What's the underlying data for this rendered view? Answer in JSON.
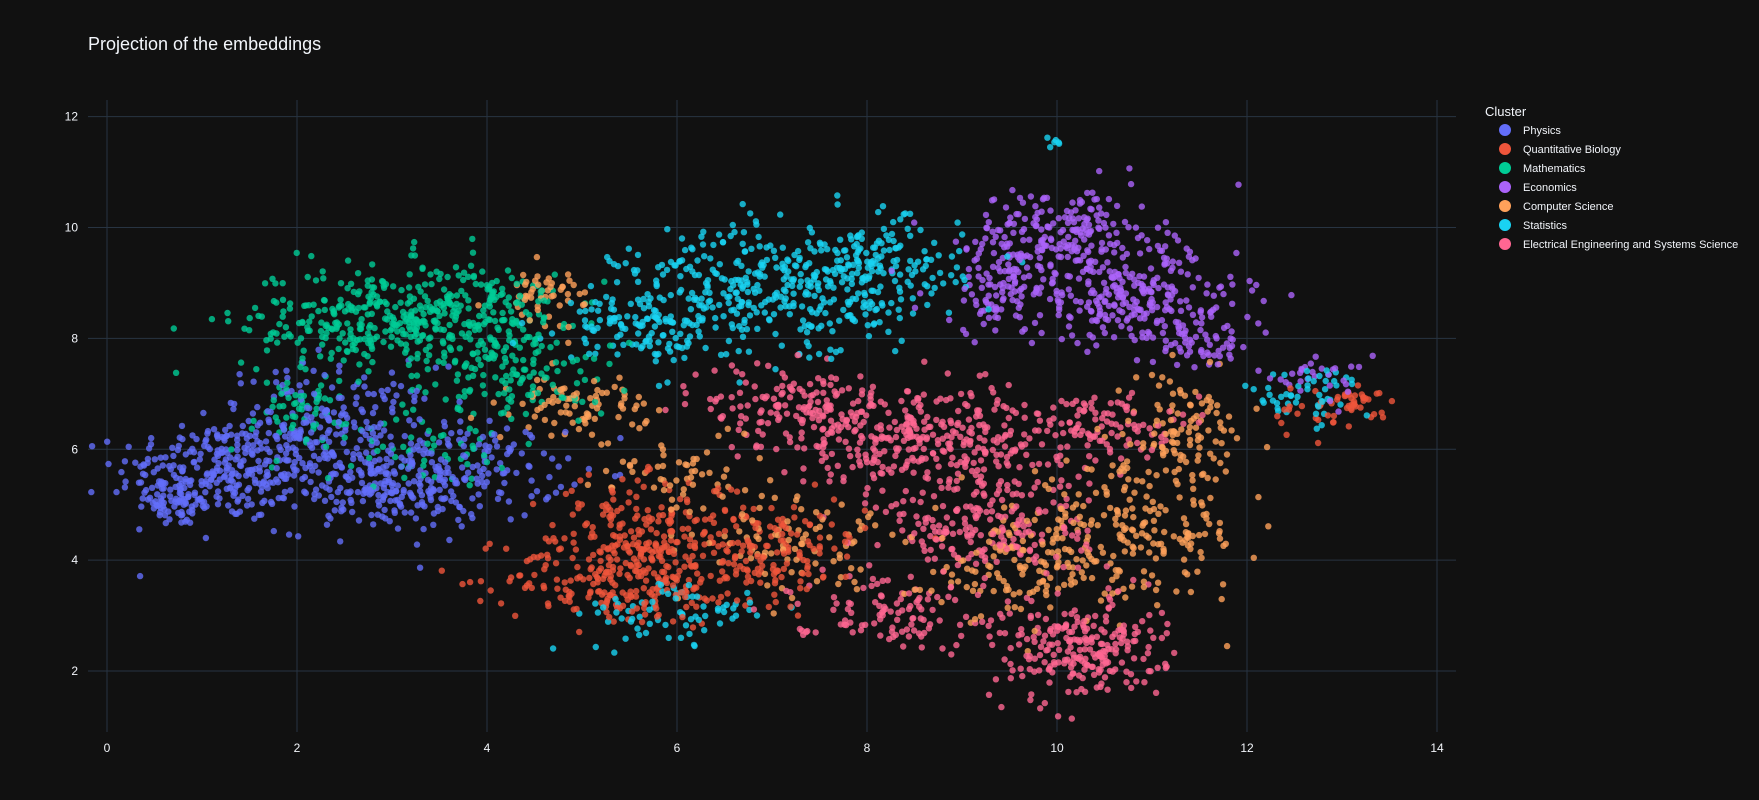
{
  "chart_data": {
    "type": "scatter",
    "title": "Projection of the embeddings",
    "xlabel": "",
    "ylabel": "",
    "xlim": [
      -0.2,
      14.2
    ],
    "ylim": [
      0.9,
      12.3
    ],
    "x_ticks": [
      "0",
      "2",
      "4",
      "6",
      "8",
      "10",
      "12",
      "14"
    ],
    "y_ticks": [
      "2",
      "4",
      "6",
      "8",
      "10",
      "12"
    ],
    "grid": true,
    "legend_title": "Cluster",
    "legend_position": "right",
    "background": "#111111",
    "grid_color": "#283442",
    "series": [
      {
        "name": "Physics",
        "color": "#636efa",
        "clusters": [
          [
            1.2,
            5.6,
            0.55,
            0.45,
            260
          ],
          [
            2.3,
            6.4,
            0.6,
            0.55,
            220
          ],
          [
            3.6,
            5.6,
            0.6,
            0.45,
            200
          ],
          [
            0.7,
            5.0,
            0.25,
            0.2,
            60
          ],
          [
            2.8,
            5.2,
            0.5,
            0.35,
            120
          ]
        ]
      },
      {
        "name": "Quantitative Biology",
        "color": "#ef553b",
        "clusters": [
          [
            5.4,
            3.7,
            0.6,
            0.45,
            240
          ],
          [
            6.8,
            4.2,
            0.6,
            0.45,
            200
          ],
          [
            5.6,
            4.8,
            0.5,
            0.35,
            100
          ],
          [
            12.9,
            6.7,
            0.35,
            0.25,
            40
          ],
          [
            13.2,
            6.95,
            0.12,
            0.05,
            15
          ]
        ]
      },
      {
        "name": "Mathematics",
        "color": "#00cc96",
        "clusters": [
          [
            2.8,
            8.3,
            0.7,
            0.5,
            300
          ],
          [
            3.8,
            8.5,
            0.5,
            0.45,
            180
          ],
          [
            4.4,
            7.4,
            0.45,
            0.45,
            120
          ],
          [
            2.0,
            6.6,
            0.4,
            0.35,
            60
          ],
          [
            3.4,
            6.0,
            0.4,
            0.3,
            50
          ]
        ]
      },
      {
        "name": "Economics",
        "color": "#ab63fa",
        "clusters": [
          [
            10.1,
            9.9,
            0.5,
            0.4,
            200
          ],
          [
            10.8,
            8.7,
            0.55,
            0.45,
            220
          ],
          [
            9.5,
            8.9,
            0.45,
            0.4,
            120
          ],
          [
            11.6,
            8.0,
            0.3,
            0.3,
            60
          ],
          [
            12.7,
            7.3,
            0.3,
            0.2,
            30
          ]
        ]
      },
      {
        "name": "Computer Science",
        "color": "#ffa15a",
        "clusters": [
          [
            10.8,
            4.5,
            0.6,
            0.6,
            200
          ],
          [
            9.6,
            3.9,
            0.45,
            0.45,
            120
          ],
          [
            11.3,
            6.3,
            0.35,
            0.5,
            100
          ],
          [
            5.0,
            6.8,
            0.35,
            0.25,
            80
          ],
          [
            4.6,
            8.8,
            0.25,
            0.25,
            50
          ],
          [
            7.2,
            4.3,
            0.5,
            0.4,
            80
          ],
          [
            6.0,
            5.6,
            0.5,
            0.4,
            60
          ]
        ]
      },
      {
        "name": "Statistics",
        "color": "#19d3f3",
        "clusters": [
          [
            6.8,
            8.8,
            0.7,
            0.6,
            300
          ],
          [
            8.0,
            9.2,
            0.5,
            0.5,
            200
          ],
          [
            5.6,
            8.2,
            0.4,
            0.3,
            100
          ],
          [
            6.0,
            3.0,
            0.5,
            0.3,
            70
          ],
          [
            12.6,
            7.0,
            0.35,
            0.25,
            50
          ],
          [
            10.0,
            11.55,
            0.05,
            0.05,
            6
          ]
        ]
      },
      {
        "name": "Electrical Engineering and Systems Science",
        "color": "#ff6692",
        "clusters": [
          [
            8.7,
            6.2,
            0.7,
            0.45,
            320
          ],
          [
            10.2,
            2.4,
            0.45,
            0.45,
            240
          ],
          [
            9.3,
            4.6,
            0.55,
            0.55,
            200
          ],
          [
            7.3,
            6.8,
            0.5,
            0.4,
            150
          ],
          [
            10.4,
            6.4,
            0.4,
            0.3,
            100
          ],
          [
            8.2,
            3.1,
            0.5,
            0.3,
            100
          ]
        ]
      }
    ]
  }
}
